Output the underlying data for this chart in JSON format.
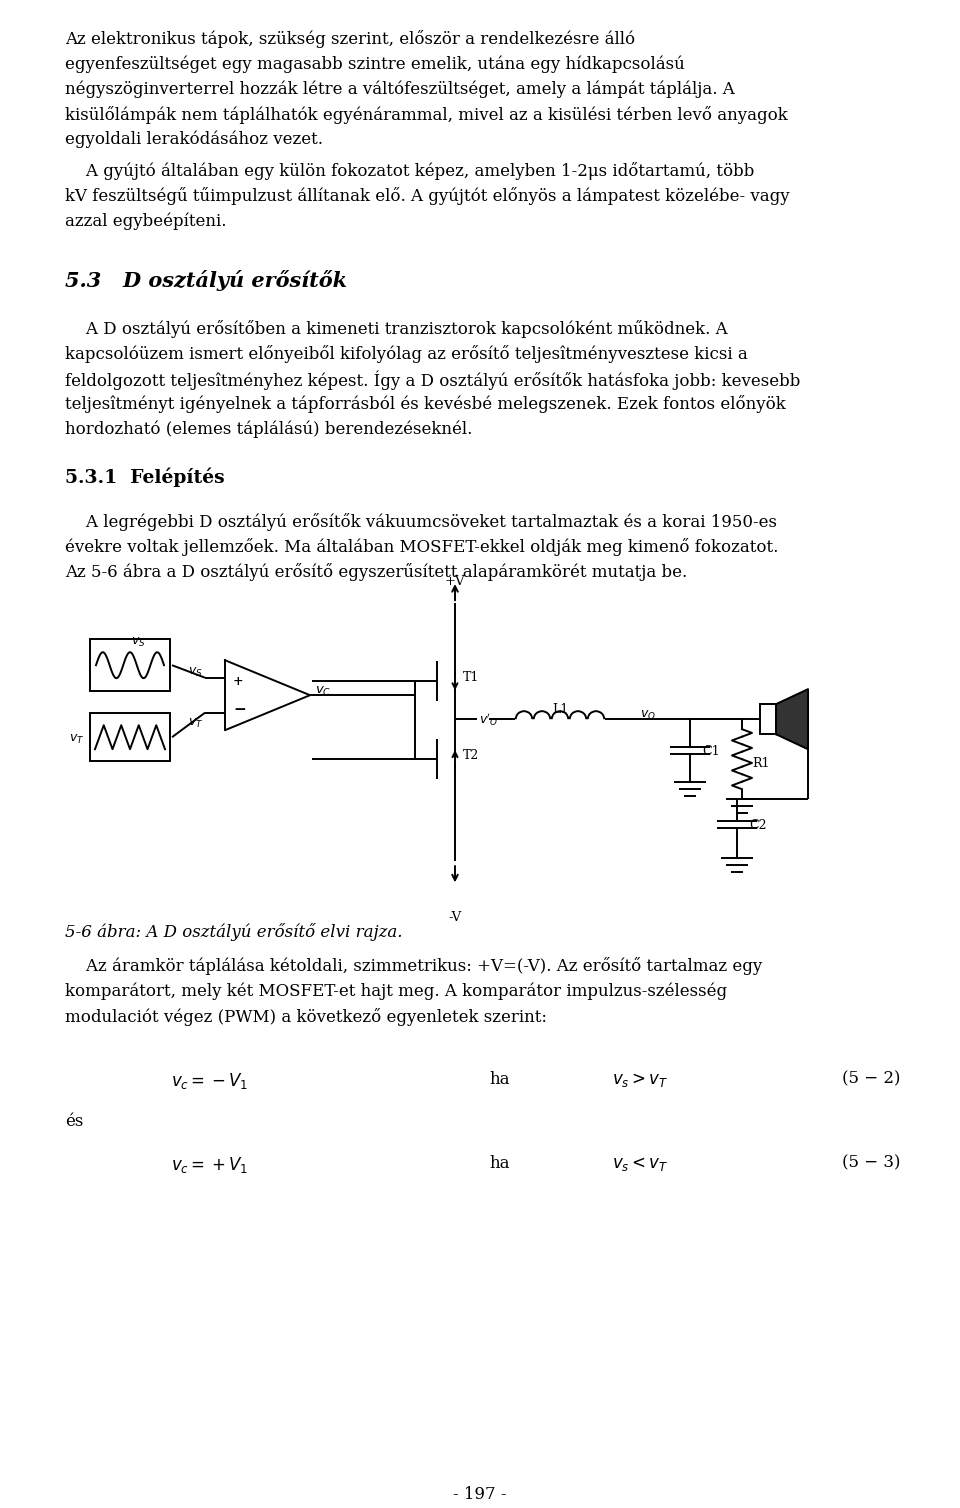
{
  "bg_color": "#ffffff",
  "text_color": "#000000",
  "page_width": 9.6,
  "page_height": 15.08,
  "p1_lines": [
    "Az elektronikus tápok, szükség szerint, először a rendelkezésre álló",
    "egyenfeszültséget egy magasabb szintre emelik, utána egy hídkapcsolású",
    "négyszöginverterrel hozzák létre a váltófeszültséget, amely a lámpát táplálja. A",
    "kisülőlámpák nem táplálhatók egyénárammal, mivel az a kisülési térben levő anyagok",
    "egyoldali lerakódásához vezet."
  ],
  "p2_lines": [
    "    A gyújtó általában egy külön fokozatot képez, amelyben 1-2μs időtartamú, több",
    "kV feszültségű tűimpulzust állítanak elő. A gyújtót előnyös a lámpatest közelébe- vagy",
    "azzal egybeépíteni."
  ],
  "section_title": "5.3   D osztályú erősítők",
  "p3_lines": [
    "    A D osztályú erősítőben a kimeneti tranzisztorok kapcsolóként működnek. A",
    "kapcsolóüzem ismert előnyeiből kifolyólag az erősítő teljesîtményvesztese kicsi a",
    "feldolgozott teljesîtményhez képest. Így a D osztályú erősítők hatásfoka jobb: kevesebb",
    "teljesîtményt igényelnek a tápforrásból és kevésbé melegszenek. Ezek fontos előnyök",
    "hordozható (elemes táplálású) berendezéseknél."
  ],
  "subsection_title": "5.3.1  Felépítés",
  "p4_lines": [
    "    A legrégebbi D osztályú erősítők vákuumcsöveket tartalmaztak és a korai 1950-es",
    "évekre voltak jellemzőek. Ma általában MOSFET-ekkel oldják meg kimenő fokozatot.",
    "Az 5-6 ábra a D osztályú erősítő egyszerűsített alapáramkörét mutatja be."
  ],
  "caption": "5-6 ábra: A D osztályú erősítő elvi rajza.",
  "p5_lines": [
    "    Az áramkör táplálása kétoldali, szimmetrikus: +V=(-V). Az erősítő tartalmaz egy",
    "komparátort, mely két MOSFET-et hajt meg. A komparátor impulzus-szélesség",
    "modulaciót végez (PWM) a következő egyenletek szerint:"
  ],
  "eq1_lhs": "$v_c = -V_1$",
  "eq1_cond": "ha",
  "eq1_rhs": "$v_s > v_T$",
  "eq1_num": "(5 − 2)",
  "eq2_lhs": "$v_c = +V_1$",
  "eq2_cond": "ha",
  "eq2_rhs": "$v_s < v_T$",
  "eq2_num": "(5 − 3)",
  "es": "és",
  "page_num": "- 197 -",
  "fs_body": 12.0,
  "fs_section": 15.0,
  "fs_subsection": 13.5,
  "lh": 0.252,
  "lm": 0.65,
  "rm": 9.02
}
